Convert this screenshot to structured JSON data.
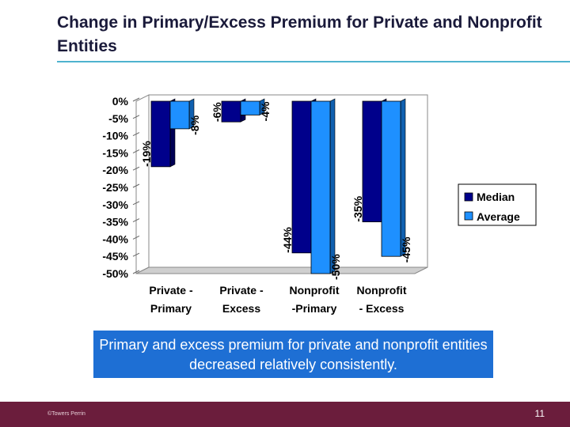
{
  "slide": {
    "title": "Change in Primary/Excess Premium for Private and Nonprofit Entities",
    "caption": "Primary and excess premium for private and nonprofit entities decreased relatively consistently.",
    "footer_left": "©Towers Perrin",
    "page_number": "11"
  },
  "colors": {
    "median": "#00008b",
    "average": "#1e90ff",
    "title_rule": "#4fb3cf",
    "caption_bg": "#1e6fd4",
    "footer_bg": "#6b1d3c"
  },
  "chart_data": {
    "type": "bar",
    "title": "",
    "xlabel": "",
    "ylabel": "",
    "ylim": [
      -50,
      0
    ],
    "y_ticks": [
      "0%",
      "-5%",
      "-10%",
      "-15%",
      "-20%",
      "-25%",
      "-30%",
      "-35%",
      "-40%",
      "-45%",
      "-50%"
    ],
    "categories": [
      [
        "Private -",
        "Primary"
      ],
      [
        "Private -",
        "Excess"
      ],
      [
        "Nonprofit",
        "-Primary"
      ],
      [
        "Nonprofit",
        "- Excess"
      ]
    ],
    "series": [
      {
        "name": "Median",
        "values": [
          -19,
          -6,
          -44,
          -35
        ],
        "labels": [
          "-19%",
          "-6%",
          "-44%",
          "-35%"
        ]
      },
      {
        "name": "Average",
        "values": [
          -8,
          -4,
          -50,
          -45
        ],
        "labels": [
          "-8%",
          "-4%",
          "-50%",
          "-45%"
        ]
      }
    ],
    "legend_position": "right",
    "grid": false
  }
}
